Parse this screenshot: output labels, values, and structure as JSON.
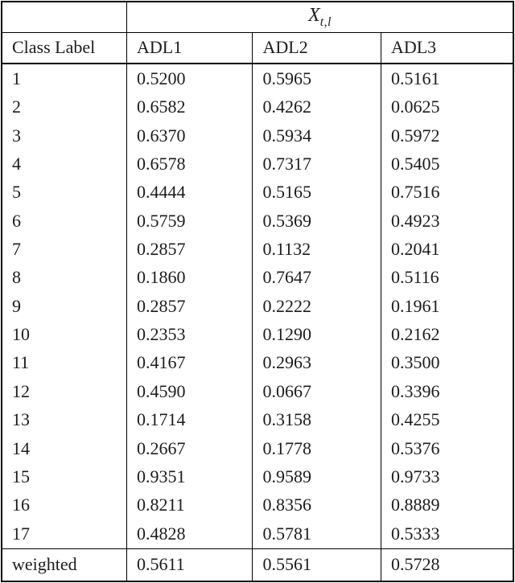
{
  "page": {
    "background_color": "#ffffff",
    "line_color": "#000000",
    "text_color": "#1c1c1c"
  },
  "table": {
    "math_header": {
      "base": "X",
      "subscript": "t,l"
    },
    "columns": [
      "Class Label",
      "ADL1",
      "ADL2",
      "ADL3"
    ],
    "rows": [
      [
        "1",
        "0.5200",
        "0.5965",
        "0.5161"
      ],
      [
        "2",
        "0.6582",
        "0.4262",
        "0.0625"
      ],
      [
        "3",
        "0.6370",
        "0.5934",
        "0.5972"
      ],
      [
        "4",
        "0.6578",
        "0.7317",
        "0.5405"
      ],
      [
        "5",
        "0.4444",
        "0.5165",
        "0.7516"
      ],
      [
        "6",
        "0.5759",
        "0.5369",
        "0.4923"
      ],
      [
        "7",
        "0.2857",
        "0.1132",
        "0.2041"
      ],
      [
        "8",
        "0.1860",
        "0.7647",
        "0.5116"
      ],
      [
        "9",
        "0.2857",
        "0.2222",
        "0.1961"
      ],
      [
        "10",
        "0.2353",
        "0.1290",
        "0.2162"
      ],
      [
        "11",
        "0.4167",
        "0.2963",
        "0.3500"
      ],
      [
        "12",
        "0.4590",
        "0.0667",
        "0.3396"
      ],
      [
        "13",
        "0.1714",
        "0.3158",
        "0.4255"
      ],
      [
        "14",
        "0.2667",
        "0.1778",
        "0.5376"
      ],
      [
        "15",
        "0.9351",
        "0.9589",
        "0.9733"
      ],
      [
        "16",
        "0.8211",
        "0.8356",
        "0.8889"
      ],
      [
        "17",
        "0.4828",
        "0.5781",
        "0.5333"
      ]
    ],
    "footer": [
      "weighted",
      "0.5611",
      "0.5561",
      "0.5728"
    ]
  }
}
